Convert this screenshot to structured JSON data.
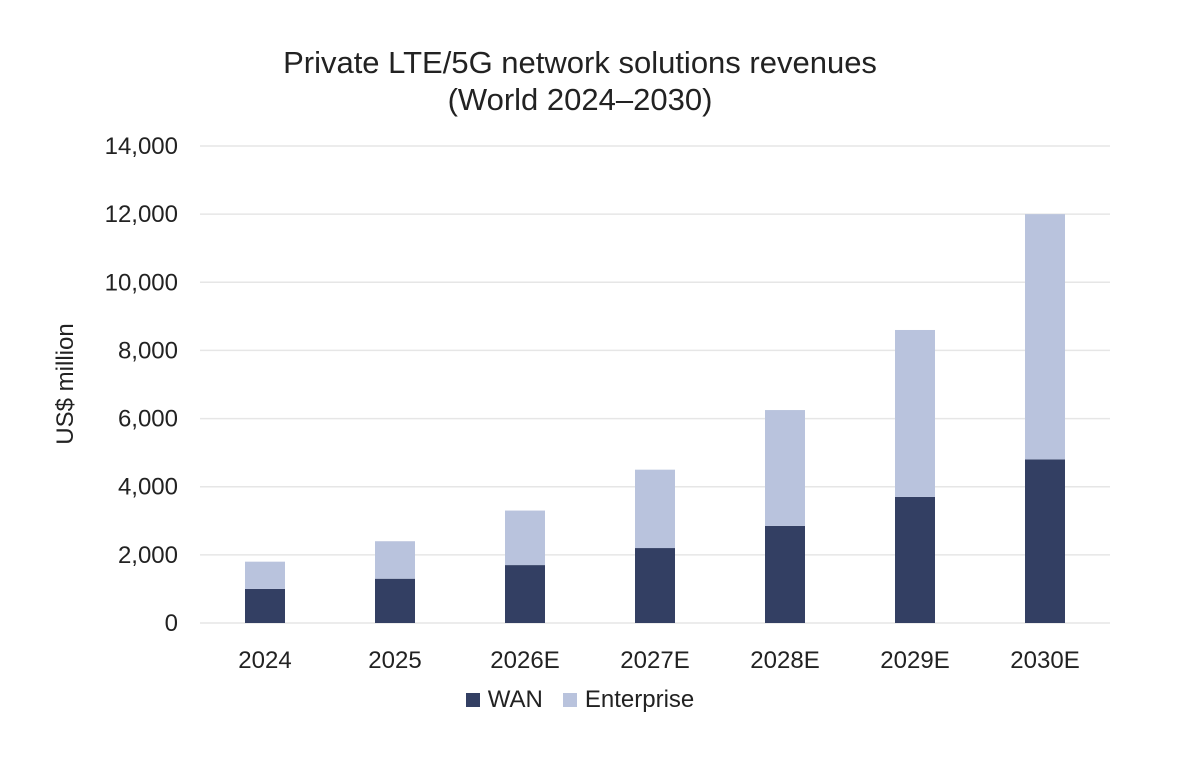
{
  "chart_data": {
    "type": "bar",
    "stacked": true,
    "title_line1": "Private LTE/5G network solutions revenues",
    "title_line2": "(World 2024–2030)",
    "xlabel": "",
    "ylabel": "US$ million",
    "ylim": [
      0,
      14000
    ],
    "yticks": [
      0,
      2000,
      4000,
      6000,
      8000,
      10000,
      12000,
      14000
    ],
    "ytick_labels": [
      "0",
      "2,000",
      "4,000",
      "6,000",
      "8,000",
      "10,000",
      "12,000",
      "14,000"
    ],
    "categories": [
      "2024",
      "2025",
      "2026E",
      "2027E",
      "2028E",
      "2029E",
      "2030E"
    ],
    "series": [
      {
        "name": "WAN",
        "color": "#333f63",
        "values": [
          1000,
          1300,
          1700,
          2200,
          2850,
          3700,
          4800
        ]
      },
      {
        "name": "Enterprise",
        "color": "#b9c3dd",
        "values": [
          800,
          1100,
          1600,
          2300,
          3400,
          4900,
          7200
        ]
      }
    ],
    "grid": true,
    "legend_position": "bottom"
  }
}
